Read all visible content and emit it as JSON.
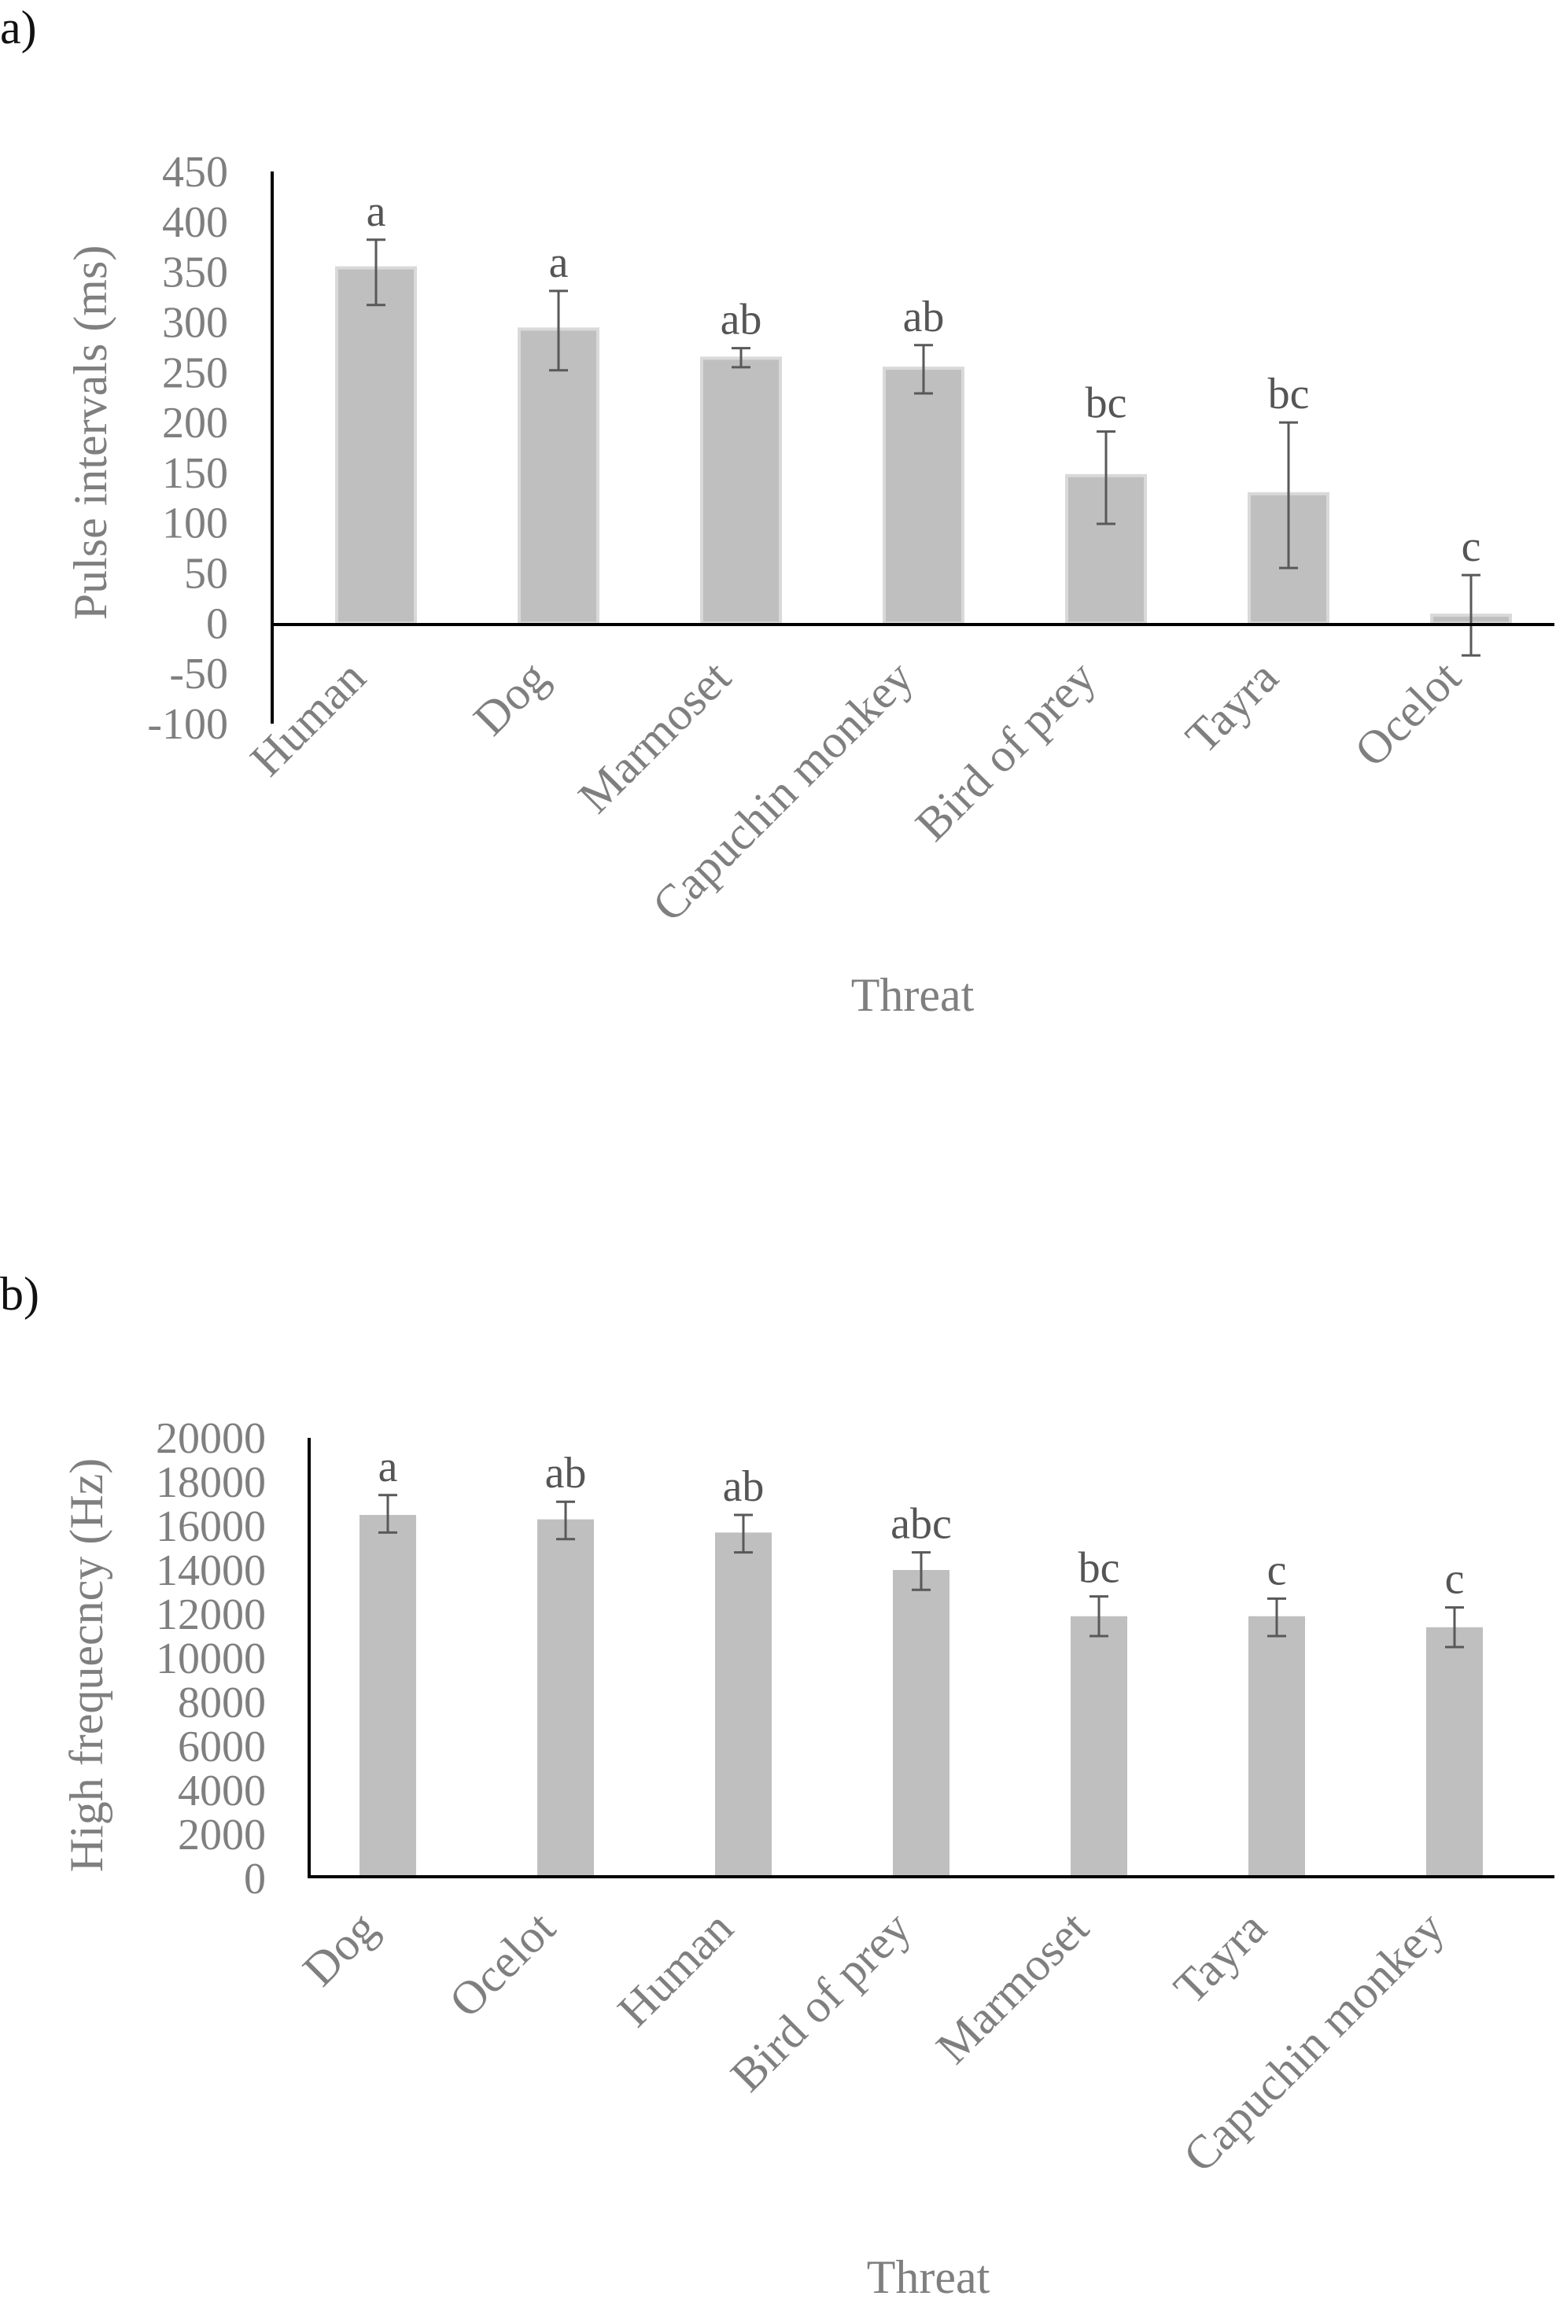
{
  "chart_data": [
    {
      "panel_label": "a)",
      "type": "bar",
      "xlabel": "Threat",
      "ylabel": "Pulse intervals (ms)",
      "ylim": [
        -100,
        450
      ],
      "yticks": [
        450,
        400,
        350,
        300,
        250,
        200,
        150,
        100,
        50,
        0,
        -50,
        -100
      ],
      "categories": [
        "Human",
        "Dog",
        "Marmoset",
        "Capuchin monkey",
        "Bird of prey",
        "Tayra",
        "Ocelot"
      ],
      "values": [
        354,
        293,
        264,
        254,
        147,
        129,
        8
      ],
      "error_low": [
        317,
        252,
        255,
        229,
        99,
        55,
        -32
      ],
      "error_high": [
        382,
        331,
        274,
        277,
        191,
        200,
        48
      ],
      "significance": [
        "a",
        "a",
        "ab",
        "ab",
        "bc",
        "bc",
        "c"
      ],
      "bar_color": "#bfbfbf",
      "bar_edge_color": "#d9d9d9",
      "error_color": "#595959",
      "grid": false
    },
    {
      "panel_label": "b)",
      "type": "bar",
      "xlabel": "Threat",
      "ylabel": "High frequecncy (Hz)",
      "ylim": [
        0,
        20000
      ],
      "yticks": [
        20000,
        18000,
        16000,
        14000,
        12000,
        10000,
        8000,
        6000,
        4000,
        2000,
        0
      ],
      "categories": [
        "Dog",
        "Ocelot",
        "Human",
        "Bird of prey",
        "Marmoset",
        "Tayra",
        "Capuchin monkey"
      ],
      "values": [
        16500,
        16300,
        15700,
        14000,
        11900,
        11900,
        11400
      ],
      "error_low": [
        15700,
        15400,
        14800,
        13100,
        11000,
        11000,
        10500
      ],
      "error_high": [
        17400,
        17100,
        16500,
        14800,
        12800,
        12700,
        12300
      ],
      "significance": [
        "a",
        "ab",
        "ab",
        "abc",
        "bc",
        "c",
        "c"
      ],
      "bar_color": "#bfbfbf",
      "error_color": "#595959",
      "grid": false
    }
  ]
}
